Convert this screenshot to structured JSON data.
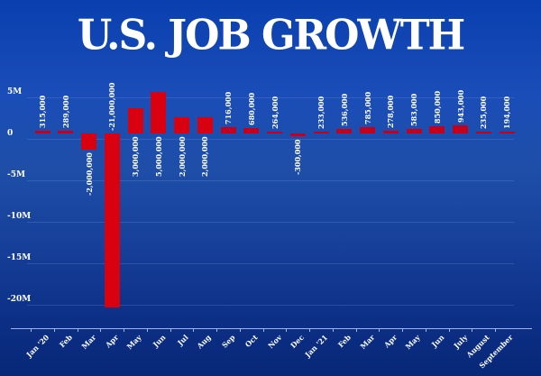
{
  "title": "U.S. JOB GROWTH",
  "colors": {
    "background": "#1a4db8",
    "bar": "#d90010",
    "text": "#ffffff",
    "axis": "#9fb3ef"
  },
  "chart_data": {
    "type": "bar",
    "title": "U.S. JOB GROWTH",
    "xlabel": "",
    "ylabel": "",
    "ylim": [
      -24000000,
      6000000
    ],
    "yticks": [
      5000000,
      0,
      -5000000,
      -10000000,
      -15000000,
      -20000000
    ],
    "ytick_labels": [
      "5M",
      "0",
      "-5M",
      "-10M",
      "-15M",
      "-20M"
    ],
    "grid": true,
    "legend": null,
    "categories": [
      "Jan '20",
      "Feb",
      "Mar",
      "Apr",
      "May",
      "Jun",
      "Jul",
      "Aug",
      "Sep",
      "Oct",
      "Nov",
      "Dec",
      "Jan '21",
      "Feb",
      "Mar",
      "Apr",
      "May",
      "Jun",
      "July",
      "August",
      "September"
    ],
    "values": [
      315000,
      289000,
      -2000000,
      -21000000,
      3000000,
      5000000,
      2000000,
      2000000,
      716000,
      680000,
      264000,
      -300000,
      233000,
      536000,
      785000,
      278000,
      583000,
      850000,
      943000,
      235000,
      194000
    ],
    "data_labels": [
      "315,000",
      "289,000",
      "-2,000,000",
      "-21,000,000",
      "3,000,000",
      "5,000,000",
      "2,000,000",
      "2,000,000",
      "716,000",
      "680,000",
      "264,000",
      "-300,000",
      "233,000",
      "536,000",
      "785,000",
      "278,000",
      "583,000",
      "850,000",
      "943,000",
      "235,000",
      "194,000"
    ]
  }
}
